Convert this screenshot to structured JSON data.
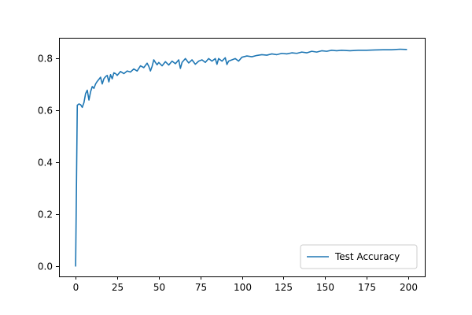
{
  "chart_data": {
    "type": "line",
    "title": "",
    "xlabel": "",
    "ylabel": "",
    "xlim": [
      -10,
      210
    ],
    "ylim": [
      -0.04,
      0.88
    ],
    "xticks": [
      0,
      25,
      50,
      75,
      100,
      125,
      150,
      175,
      200
    ],
    "yticks": [
      0.0,
      0.2,
      0.4,
      0.6,
      0.8
    ],
    "ytick_labels": [
      "0.0",
      "0.2",
      "0.4",
      "0.6",
      "0.8"
    ],
    "grid": false,
    "legend": {
      "placement": "bottom-right"
    },
    "series": [
      {
        "name": "Test Accuracy",
        "color": "#1f77b4",
        "points": [
          [
            0,
            0.0
          ],
          [
            1,
            0.62
          ],
          [
            2,
            0.625
          ],
          [
            3,
            0.622
          ],
          [
            4,
            0.612
          ],
          [
            5,
            0.63
          ],
          [
            6,
            0.665
          ],
          [
            7,
            0.678
          ],
          [
            8,
            0.64
          ],
          [
            9,
            0.672
          ],
          [
            10,
            0.692
          ],
          [
            11,
            0.685
          ],
          [
            12,
            0.702
          ],
          [
            13,
            0.712
          ],
          [
            14,
            0.72
          ],
          [
            15,
            0.728
          ],
          [
            16,
            0.702
          ],
          [
            17,
            0.722
          ],
          [
            18,
            0.73
          ],
          [
            19,
            0.735
          ],
          [
            20,
            0.71
          ],
          [
            21,
            0.738
          ],
          [
            22,
            0.722
          ],
          [
            23,
            0.745
          ],
          [
            24,
            0.742
          ],
          [
            25,
            0.735
          ],
          [
            27,
            0.75
          ],
          [
            29,
            0.742
          ],
          [
            31,
            0.752
          ],
          [
            33,
            0.748
          ],
          [
            35,
            0.76
          ],
          [
            37,
            0.752
          ],
          [
            39,
            0.772
          ],
          [
            41,
            0.765
          ],
          [
            43,
            0.782
          ],
          [
            44,
            0.77
          ],
          [
            45,
            0.752
          ],
          [
            46,
            0.77
          ],
          [
            47,
            0.795
          ],
          [
            48,
            0.785
          ],
          [
            49,
            0.776
          ],
          [
            50,
            0.785
          ],
          [
            52,
            0.772
          ],
          [
            54,
            0.788
          ],
          [
            56,
            0.775
          ],
          [
            58,
            0.79
          ],
          [
            60,
            0.78
          ],
          [
            62,
            0.795
          ],
          [
            63,
            0.762
          ],
          [
            64,
            0.785
          ],
          [
            66,
            0.8
          ],
          [
            68,
            0.783
          ],
          [
            70,
            0.795
          ],
          [
            72,
            0.778
          ],
          [
            74,
            0.79
          ],
          [
            76,
            0.795
          ],
          [
            78,
            0.785
          ],
          [
            80,
            0.8
          ],
          [
            82,
            0.79
          ],
          [
            84,
            0.8
          ],
          [
            85,
            0.778
          ],
          [
            86,
            0.8
          ],
          [
            88,
            0.79
          ],
          [
            90,
            0.803
          ],
          [
            91,
            0.777
          ],
          [
            92,
            0.79
          ],
          [
            94,
            0.795
          ],
          [
            96,
            0.8
          ],
          [
            98,
            0.79
          ],
          [
            100,
            0.805
          ],
          [
            103,
            0.81
          ],
          [
            106,
            0.807
          ],
          [
            109,
            0.812
          ],
          [
            112,
            0.815
          ],
          [
            115,
            0.813
          ],
          [
            118,
            0.818
          ],
          [
            121,
            0.815
          ],
          [
            124,
            0.82
          ],
          [
            127,
            0.818
          ],
          [
            130,
            0.822
          ],
          [
            133,
            0.82
          ],
          [
            136,
            0.825
          ],
          [
            139,
            0.822
          ],
          [
            142,
            0.828
          ],
          [
            145,
            0.825
          ],
          [
            148,
            0.83
          ],
          [
            151,
            0.828
          ],
          [
            154,
            0.832
          ],
          [
            157,
            0.83
          ],
          [
            160,
            0.832
          ],
          [
            165,
            0.83
          ],
          [
            170,
            0.832
          ],
          [
            175,
            0.832
          ],
          [
            180,
            0.833
          ],
          [
            185,
            0.834
          ],
          [
            190,
            0.834
          ],
          [
            195,
            0.836
          ],
          [
            199,
            0.835
          ]
        ]
      }
    ]
  }
}
